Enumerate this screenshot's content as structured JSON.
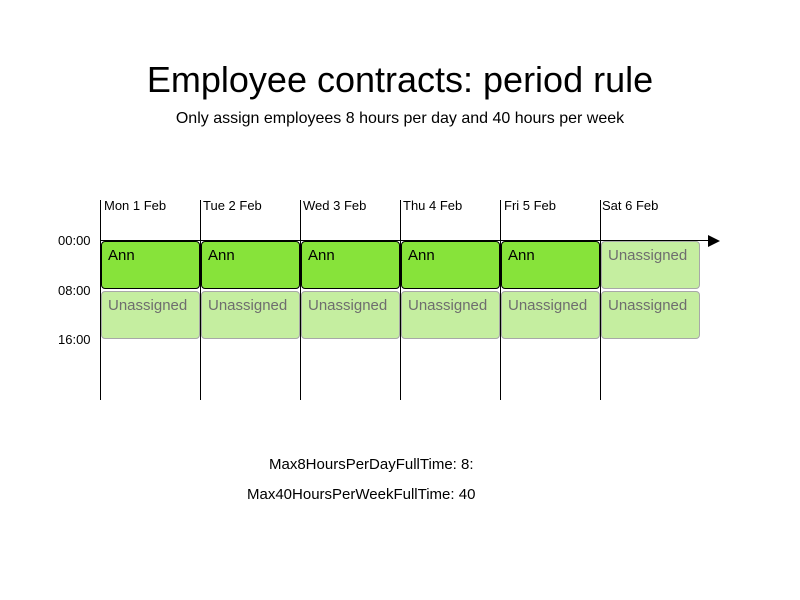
{
  "title": "Employee contracts: period rule",
  "subtitle": "Only assign employees 8 hours per day and 40 hours per week",
  "days": [
    "Mon 1 Feb",
    "Tue 2 Feb",
    "Wed 3 Feb",
    "Thu 4 Feb",
    "Fri 5 Feb",
    "Sat 6 Feb"
  ],
  "times": [
    "00:00",
    "08:00",
    "16:00"
  ],
  "shifts": {
    "row1": [
      "Ann",
      "Ann",
      "Ann",
      "Ann",
      "Ann",
      "Unassigned"
    ],
    "row2": [
      "Unassigned",
      "Unassigned",
      "Unassigned",
      "Unassigned",
      "Unassigned",
      "Unassigned"
    ]
  },
  "colors": {
    "assigned": "#87e33a",
    "unassigned": "#c5eea0"
  },
  "rules": {
    "max_per_day": "Max8HoursPerDayFullTime: 8:",
    "max_per_week": "Max40HoursPerWeekFullTime: 40"
  }
}
